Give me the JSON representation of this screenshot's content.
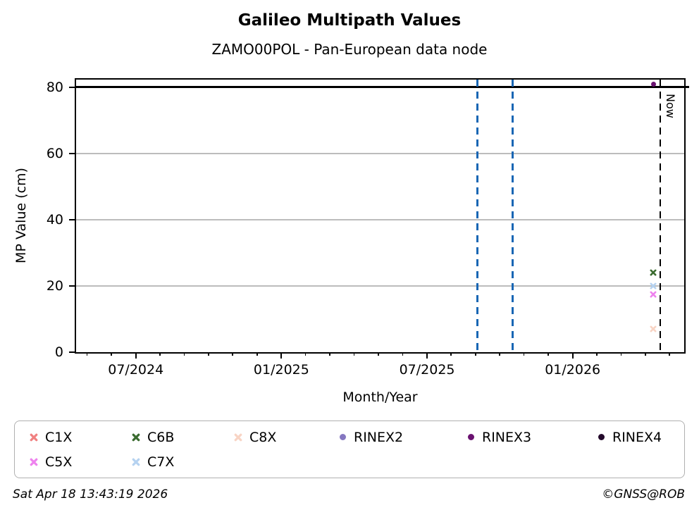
{
  "chart_data": {
    "type": "scatter",
    "title": "Galileo Multipath Values",
    "subtitle": "ZAMO00POL - Pan-European data node",
    "xlabel": "Month/Year",
    "ylabel": "MP Value (cm)",
    "xlim": [
      2024.295,
      2026.383
    ],
    "ylim": [
      0,
      82.3
    ],
    "yticks": [
      0,
      20,
      40,
      60,
      80
    ],
    "grid": "horizontal-only",
    "xticks_major": [
      {
        "x": 2024.5,
        "label": "07/2024"
      },
      {
        "x": 2025.0,
        "label": "01/2025"
      },
      {
        "x": 2025.5,
        "label": "07/2025"
      },
      {
        "x": 2026.0,
        "label": "01/2026"
      }
    ],
    "xticks_minor": [
      2024.3333,
      2024.4167,
      2024.5833,
      2024.6667,
      2024.75,
      2024.8333,
      2024.9167,
      2025.0833,
      2025.1667,
      2025.25,
      2025.3333,
      2025.4167,
      2025.5833,
      2025.6667,
      2025.75,
      2025.8333,
      2025.9167,
      2026.0833,
      2026.1667,
      2026.25,
      2026.3333
    ],
    "hlines": [
      {
        "y": 80,
        "color": "#000000",
        "style": "solid",
        "name": "threshold-80"
      }
    ],
    "vlines": [
      {
        "x": 2025.672,
        "color": "#1866b4",
        "style": "dashed",
        "label": "",
        "name": "event-line-1"
      },
      {
        "x": 2025.793,
        "color": "#1866b4",
        "style": "dashed",
        "label": "",
        "name": "event-line-2"
      },
      {
        "x": 2026.301,
        "color": "#000000",
        "style": "dashed",
        "label": "Now",
        "name": "now-line"
      }
    ],
    "series": [
      {
        "name": "C1X",
        "marker": "x",
        "color": "#f08080",
        "points": []
      },
      {
        "name": "C6B",
        "marker": "x",
        "color": "#3a6b2f",
        "points": [
          {
            "x": 2026.277,
            "y": 25
          }
        ]
      },
      {
        "name": "C8X",
        "marker": "x",
        "color": "#f8d4c4",
        "points": [
          {
            "x": 2026.277,
            "y": 8
          }
        ]
      },
      {
        "name": "RINEX2",
        "marker": "circle",
        "color": "#8577c0",
        "points": []
      },
      {
        "name": "RINEX3",
        "marker": "circle",
        "color": "#6a1270",
        "points": [
          {
            "x": 2026.277,
            "y": 81
          }
        ]
      },
      {
        "name": "RINEX4",
        "marker": "circle",
        "color": "#230a2b",
        "points": []
      },
      {
        "name": "C5X",
        "marker": "x",
        "color": "#ee82ee",
        "points": [
          {
            "x": 2026.277,
            "y": 18.5
          }
        ]
      },
      {
        "name": "C7X",
        "marker": "x",
        "color": "#b5d2f0",
        "points": [
          {
            "x": 2026.277,
            "y": 21
          }
        ]
      }
    ],
    "legend": {
      "position": "bottom",
      "order": [
        "C1X",
        "C6B",
        "C8X",
        "RINEX2",
        "RINEX3",
        "RINEX4",
        "C5X",
        "C7X"
      ]
    }
  },
  "footer": {
    "timestamp": "Sat Apr 18 13:43:19 2026",
    "credit": "©GNSS@ROB"
  }
}
